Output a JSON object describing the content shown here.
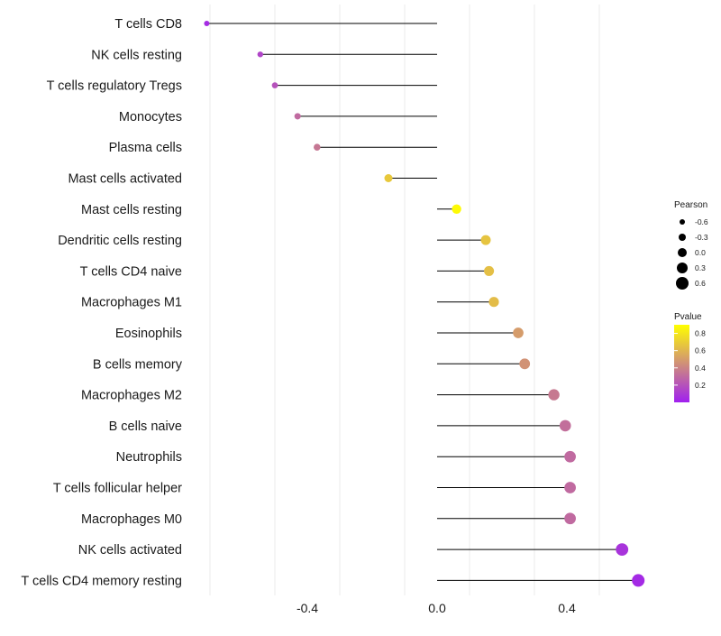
{
  "chart_data": {
    "type": "lollipop",
    "title": "",
    "xlabel": "",
    "ylabel": "",
    "xlim": [
      -0.7,
      0.8
    ],
    "x_ticks": [
      -0.4,
      0.0,
      0.4
    ],
    "x_tick_labels": [
      "-0.4",
      "0.0",
      "0.4"
    ],
    "grid": true,
    "categories": [
      "T cells CD8",
      "NK cells resting",
      "T cells regulatory  Tregs",
      "Monocytes",
      "Plasma cells",
      "Mast cells activated",
      "Mast cells resting",
      "Dendritic cells resting",
      "T cells CD4 naive",
      "Macrophages M1",
      "Eosinophils",
      "B cells memory",
      "Macrophages M2",
      "B cells naive",
      "Neutrophils",
      "T cells follicular helper",
      "Macrophages M0",
      "NK cells activated",
      "T cells CD4 memory resting"
    ],
    "pearson": [
      -0.71,
      -0.545,
      -0.5,
      -0.43,
      -0.37,
      -0.15,
      0.06,
      0.15,
      0.16,
      0.175,
      0.25,
      0.27,
      0.36,
      0.395,
      0.41,
      0.41,
      0.41,
      0.57,
      0.62
    ],
    "pvalue": [
      0.05,
      0.15,
      0.2,
      0.3,
      0.35,
      0.68,
      0.88,
      0.66,
      0.64,
      0.63,
      0.5,
      0.46,
      0.36,
      0.32,
      0.3,
      0.3,
      0.3,
      0.08,
      0.04
    ],
    "legend_size": {
      "title": "Pearson",
      "values": [
        -0.6,
        -0.3,
        0.0,
        0.3,
        0.6
      ],
      "labels": [
        "-0.6",
        "-0.3",
        "0.0",
        "0.3",
        "0.6"
      ]
    },
    "legend_color": {
      "title": "Pvalue",
      "breaks": [
        0.8,
        0.6,
        0.4,
        0.2
      ],
      "labels": [
        "0.8",
        "0.6",
        "0.4",
        "0.2"
      ],
      "range": [
        0.0,
        0.9
      ],
      "low_color": "#a020f0",
      "high_color": "#ffff00"
    },
    "colors": {
      "stem": "#000000",
      "gridline": "#ebebeb"
    }
  }
}
